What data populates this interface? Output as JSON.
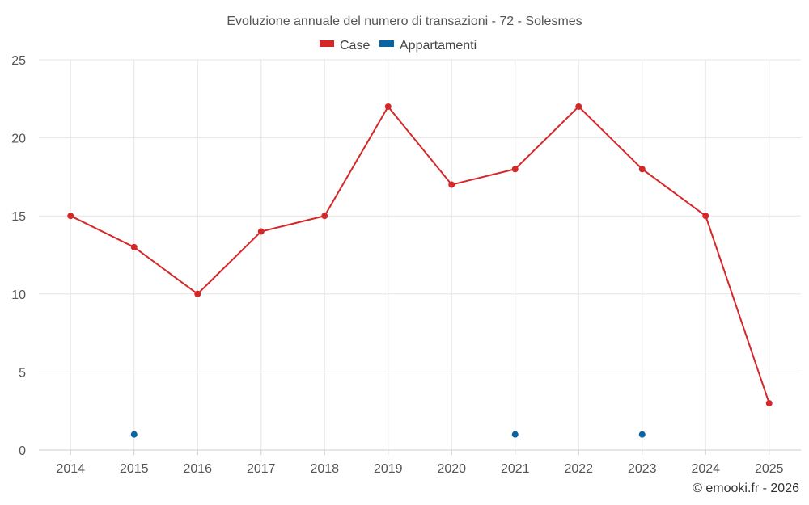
{
  "chart_data": {
    "type": "line",
    "title": "Evoluzione annuale del numero di transazioni - 72 - Solesmes",
    "categories": [
      "2014",
      "2015",
      "2016",
      "2017",
      "2018",
      "2019",
      "2020",
      "2021",
      "2022",
      "2023",
      "2024",
      "2025"
    ],
    "ylim": [
      0,
      25
    ],
    "yticks": [
      0,
      5,
      10,
      15,
      20,
      25
    ],
    "grid": true,
    "legend_position": "top-center",
    "series": [
      {
        "name": "Case",
        "color": "#d62728",
        "values": [
          15,
          13,
          10,
          14,
          15,
          22,
          17,
          18,
          22,
          18,
          15,
          3
        ]
      },
      {
        "name": "Appartamenti",
        "color": "#0a64a0",
        "values": [
          null,
          1,
          null,
          null,
          null,
          null,
          null,
          1,
          null,
          1,
          null,
          null
        ]
      }
    ]
  },
  "credit": "© emooki.fr - 2026"
}
